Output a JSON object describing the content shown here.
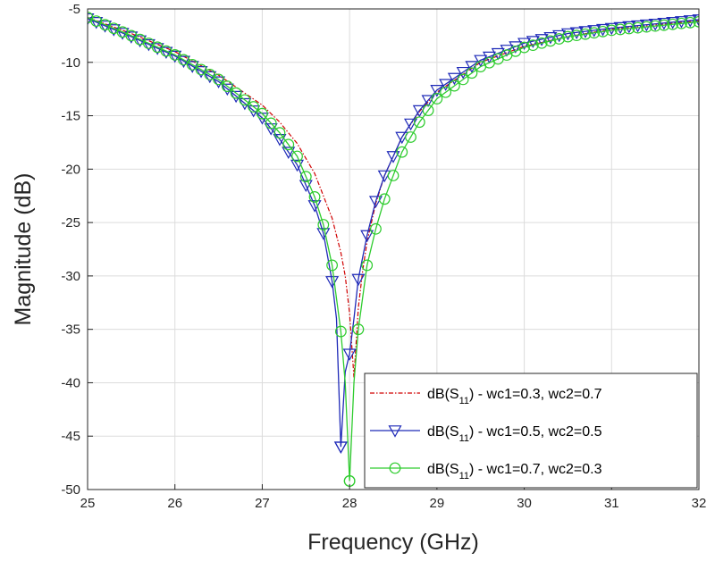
{
  "chart_data": {
    "type": "line",
    "title": "",
    "xlabel": "Frequency (GHz)",
    "ylabel": "Magnitude (dB)",
    "xlim": [
      25,
      32
    ],
    "ylim": [
      -50,
      -5
    ],
    "xticks": [
      25,
      26,
      27,
      28,
      29,
      30,
      31,
      32
    ],
    "yticks": [
      -5,
      -10,
      -15,
      -20,
      -25,
      -30,
      -35,
      -40,
      -45,
      -50
    ],
    "grid": true,
    "legend_position": "bottom-right",
    "series": [
      {
        "name": "dB(S11) - wc1=0.3, wc2=0.7",
        "legend_main": "dB(S",
        "legend_sub": "11",
        "legend_tail": ") - wc1=0.3, wc2=0.7",
        "color": "#d00000",
        "line_style": "dashdot",
        "marker": "none",
        "min_at": 28.05,
        "min_value": -39.5,
        "x": [
          25.0,
          25.5,
          26.0,
          26.5,
          27.0,
          27.2,
          27.4,
          27.6,
          27.8,
          27.9,
          27.95,
          28.0,
          28.05,
          28.1,
          28.15,
          28.2,
          28.3,
          28.4,
          28.6,
          28.8,
          29.0,
          29.5,
          30.0,
          30.5,
          31.0,
          31.5,
          32.0
        ],
        "y": [
          -5.8,
          -7.3,
          -9.0,
          -11.2,
          -14.0,
          -15.6,
          -17.6,
          -20.4,
          -24.6,
          -27.8,
          -30.0,
          -33.5,
          -39.5,
          -33.0,
          -29.5,
          -26.8,
          -23.2,
          -20.6,
          -17.0,
          -14.6,
          -12.8,
          -10.0,
          -8.5,
          -7.6,
          -6.9,
          -6.5,
          -6.1
        ]
      },
      {
        "name": "dB(S11) - wc1=0.5, wc2=0.5",
        "legend_main": "dB(S",
        "legend_sub": "11",
        "legend_tail": ") - wc1=0.5, wc2=0.5",
        "color": "#1f2ab8",
        "line_style": "solid",
        "marker": "triangle-down",
        "min_at": 27.9,
        "min_value": -46.0,
        "x": [
          25.0,
          25.5,
          26.0,
          26.5,
          27.0,
          27.2,
          27.4,
          27.6,
          27.7,
          27.8,
          27.85,
          27.9,
          27.95,
          28.0,
          28.05,
          28.1,
          28.2,
          28.3,
          28.4,
          28.6,
          28.8,
          29.0,
          29.5,
          30.0,
          30.5,
          31.0,
          31.5,
          32.0
        ],
        "y": [
          -5.9,
          -7.6,
          -9.4,
          -11.8,
          -15.2,
          -17.2,
          -19.6,
          -23.4,
          -26.0,
          -30.5,
          -34.0,
          -46.0,
          -39.0,
          -37.3,
          -34.0,
          -30.3,
          -26.2,
          -23.0,
          -20.6,
          -17.0,
          -14.5,
          -12.6,
          -9.8,
          -8.2,
          -7.3,
          -6.8,
          -6.4,
          -6.0
        ],
        "markers_x": [
          25.0,
          25.1,
          25.2,
          25.3,
          25.4,
          25.5,
          25.6,
          25.7,
          25.8,
          25.9,
          26.0,
          26.1,
          26.2,
          26.3,
          26.4,
          26.5,
          26.6,
          26.7,
          26.8,
          26.9,
          27.0,
          27.1,
          27.2,
          27.3,
          27.4,
          27.5,
          27.6,
          27.7,
          27.8,
          27.9,
          28.0,
          28.1,
          28.2,
          28.3,
          28.4,
          28.5,
          28.6,
          28.7,
          28.8,
          28.9,
          29.0,
          29.1,
          29.2,
          29.3,
          29.4,
          29.5,
          29.6,
          29.7,
          29.8,
          29.9,
          30.0,
          30.1,
          30.2,
          30.3,
          30.4,
          30.5,
          30.6,
          30.7,
          30.8,
          30.9,
          31.0,
          31.1,
          31.2,
          31.3,
          31.4,
          31.5,
          31.6,
          31.7,
          31.8,
          31.9,
          32.0
        ]
      },
      {
        "name": "dB(S11) - wc1=0.7, wc2=0.3",
        "legend_main": "dB(S",
        "legend_sub": "11",
        "legend_tail": ") - wc1=0.7, wc2=0.3",
        "color": "#2ecc2e",
        "line_style": "solid",
        "marker": "circle",
        "min_at": 28.0,
        "min_value": -49.2,
        "x": [
          25.0,
          25.5,
          26.0,
          26.5,
          27.0,
          27.2,
          27.4,
          27.6,
          27.7,
          27.8,
          27.9,
          27.95,
          28.0,
          28.05,
          28.1,
          28.2,
          28.3,
          28.4,
          28.6,
          28.8,
          29.0,
          29.5,
          30.0,
          30.5,
          31.0,
          31.5,
          32.0
        ],
        "y": [
          -5.8,
          -7.5,
          -9.3,
          -11.6,
          -14.8,
          -16.6,
          -18.8,
          -22.6,
          -25.2,
          -29.0,
          -35.2,
          -40.0,
          -49.2,
          -40.0,
          -35.0,
          -29.0,
          -25.6,
          -22.8,
          -18.4,
          -15.6,
          -13.4,
          -10.4,
          -8.6,
          -7.6,
          -7.0,
          -6.6,
          -6.2
        ],
        "markers_x": [
          25.0,
          25.1,
          25.2,
          25.3,
          25.4,
          25.5,
          25.6,
          25.7,
          25.8,
          25.9,
          26.0,
          26.1,
          26.2,
          26.3,
          26.4,
          26.5,
          26.6,
          26.7,
          26.8,
          26.9,
          27.0,
          27.1,
          27.2,
          27.3,
          27.4,
          27.5,
          27.6,
          27.7,
          27.8,
          27.9,
          28.0,
          28.1,
          28.2,
          28.3,
          28.4,
          28.5,
          28.6,
          28.7,
          28.8,
          28.9,
          29.0,
          29.1,
          29.2,
          29.3,
          29.4,
          29.5,
          29.6,
          29.7,
          29.8,
          29.9,
          30.0,
          30.1,
          30.2,
          30.3,
          30.4,
          30.5,
          30.6,
          30.7,
          30.8,
          30.9,
          31.0,
          31.1,
          31.2,
          31.3,
          31.4,
          31.5,
          31.6,
          31.7,
          31.8,
          31.9,
          32.0
        ]
      }
    ]
  }
}
